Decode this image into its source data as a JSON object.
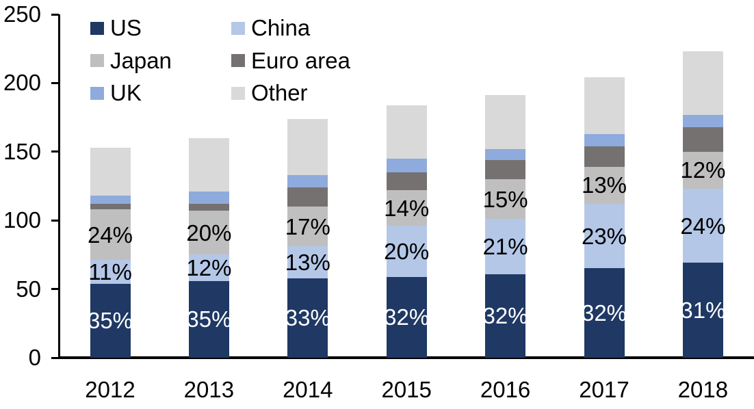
{
  "chart_data": {
    "type": "bar",
    "stacked": true,
    "title": "",
    "xlabel": "",
    "ylabel": "",
    "categories": [
      "2012",
      "2013",
      "2014",
      "2015",
      "2016",
      "2017",
      "2018"
    ],
    "series": [
      {
        "name": "US",
        "color": "#1F3864",
        "values": [
          54,
          56,
          58,
          59,
          61,
          65,
          69
        ],
        "labels": [
          "35%",
          "35%",
          "33%",
          "32%",
          "32%",
          "32%",
          "31%"
        ],
        "label_color": "#FFFFFF"
      },
      {
        "name": "China",
        "color": "#B4C7E7",
        "values": [
          17,
          19,
          23,
          37,
          40,
          47,
          54
        ],
        "labels": [
          "11%",
          "12%",
          "13%",
          "20%",
          "21%",
          "23%",
          "24%"
        ],
        "label_color": "#000000"
      },
      {
        "name": "Japan",
        "color": "#BFBFBF",
        "values": [
          37,
          32,
          29,
          26,
          29,
          27,
          27
        ],
        "labels": [
          "24%",
          "20%",
          "17%",
          "14%",
          "15%",
          "13%",
          "12%"
        ],
        "label_color": "#000000"
      },
      {
        "name": "Euro area",
        "color": "#767171",
        "values": [
          4,
          5,
          14,
          13,
          14,
          15,
          18
        ],
        "labels": null,
        "label_color": null
      },
      {
        "name": "UK",
        "color": "#8FAADC",
        "values": [
          6,
          9,
          9,
          10,
          8,
          9,
          9
        ],
        "labels": null,
        "label_color": null
      },
      {
        "name": "Other",
        "color": "#D9D9D9",
        "values": [
          35,
          39,
          41,
          39,
          39,
          41,
          46
        ],
        "labels": null,
        "label_color": null
      }
    ],
    "totals": [
      153,
      160,
      174,
      184,
      191,
      204,
      223
    ],
    "ylim": [
      0,
      250
    ],
    "y_tick_values": [
      250,
      200,
      150,
      100,
      50,
      0
    ],
    "y_tick_labels": [
      "250",
      "200",
      "150",
      "100",
      "50",
      "0"
    ],
    "grid": false,
    "legend_position": "top-left",
    "legend_columns": 2,
    "legend_order": [
      "US",
      "China",
      "Japan",
      "Euro area",
      "UK",
      "Other"
    ],
    "axis_color": "#000000",
    "text_color": "#000000",
    "background_color": "#FFFFFF"
  }
}
